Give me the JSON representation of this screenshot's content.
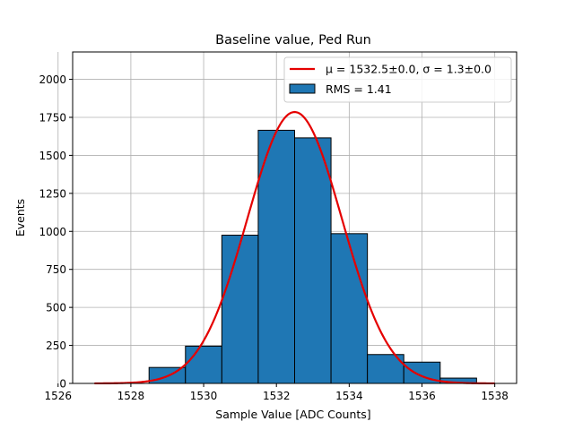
{
  "chart_data": {
    "type": "bar",
    "title": "Baseline value, Ped Run",
    "xlabel": "Sample Value [ADC Counts]",
    "ylabel": "Events",
    "xlim": [
      1526.4,
      1538.6
    ],
    "ylim": [
      0,
      2180
    ],
    "xticks": [
      1526,
      1528,
      1530,
      1532,
      1534,
      1536,
      1538
    ],
    "yticks": [
      0,
      250,
      500,
      750,
      1000,
      1250,
      1500,
      1750,
      2000
    ],
    "grid": true,
    "legend_position": "top-right",
    "histogram": {
      "name": "RMS = 1.41",
      "bins": [
        {
          "x0": 1528.5,
          "x1": 1529.5,
          "value": 105
        },
        {
          "x0": 1529.5,
          "x1": 1530.5,
          "value": 245
        },
        {
          "x0": 1530.5,
          "x1": 1531.5,
          "value": 975
        },
        {
          "x0": 1531.5,
          "x1": 1532.5,
          "value": 1665
        },
        {
          "x0": 1532.5,
          "x1": 1533.5,
          "value": 1615
        },
        {
          "x0": 1533.5,
          "x1": 1534.5,
          "value": 985
        },
        {
          "x0": 1534.5,
          "x1": 1535.5,
          "value": 190
        },
        {
          "x0": 1535.5,
          "x1": 1536.5,
          "value": 140
        },
        {
          "x0": 1536.5,
          "x1": 1537.5,
          "value": 35
        }
      ]
    },
    "fit": {
      "name": "μ = 1532.5±0.0, σ = 1.3±0.0",
      "mu": 1532.5,
      "sigma": 1.3,
      "amplitude": 1785,
      "x_range": [
        1527,
        1538
      ]
    },
    "colors": {
      "bar_fill": "#1f77b4",
      "bar_edge": "#000000",
      "fit_line": "#e50000",
      "grid": "#b0b0b0"
    }
  }
}
